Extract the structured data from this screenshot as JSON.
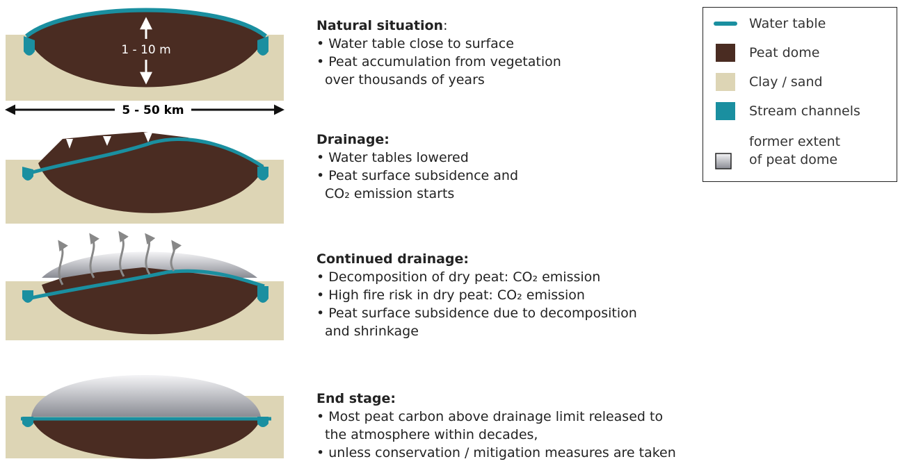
{
  "stages": [
    {
      "title": "Natural situation",
      "title_tail": ":",
      "bullets": [
        [
          "• Water table close to surface"
        ],
        [
          "• Peat accumulation from vegetation",
          "over thousands of years"
        ]
      ]
    },
    {
      "title": "Drainage:",
      "bullets": [
        [
          "• Water tables lowered"
        ],
        [
          "• Peat surface subsidence and",
          "CO₂ emission starts"
        ]
      ]
    },
    {
      "title": "Continued drainage:",
      "bullets": [
        [
          "• Decomposition of dry peat: CO₂ emission"
        ],
        [
          "• High fire risk in dry peat: CO₂ emission"
        ],
        [
          "• Peat surface subsidence due to decomposition",
          "and shrinkage"
        ]
      ]
    },
    {
      "title": "End stage:",
      "bullets": [
        [
          "• Most peat carbon above drainage limit released to",
          "the atmosphere within decades,"
        ],
        [
          "• unless conservation / mitigation measures are taken"
        ]
      ]
    }
  ],
  "dimensions": {
    "height": "1 - 10 m",
    "width": "5 - 50 km"
  },
  "legend": [
    [
      "Water table"
    ],
    [
      "Peat dome"
    ],
    [
      "Clay / sand"
    ],
    [
      "Stream channels"
    ],
    [
      "former extent",
      "of peat dome"
    ]
  ]
}
